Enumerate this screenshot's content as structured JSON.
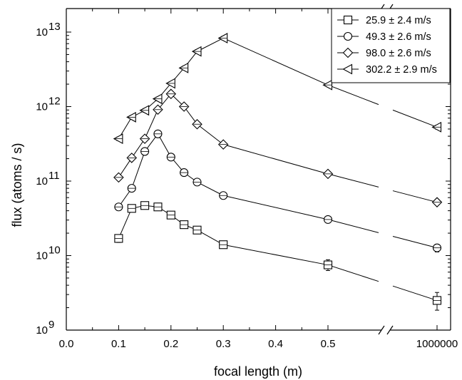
{
  "chart_data": {
    "type": "line",
    "title": "",
    "xlabel": "focal length (m)",
    "ylabel": "flux (atoms / s)",
    "y_scale": "log",
    "ylim": [
      1000000000.0,
      20000000000000.0
    ],
    "y_ticks": [
      {
        "value": 1000000000.0,
        "base": "10",
        "exp": "9"
      },
      {
        "value": 10000000000.0,
        "base": "10",
        "exp": "10"
      },
      {
        "value": 100000000000.0,
        "base": "10",
        "exp": "11"
      },
      {
        "value": 1000000000000.0,
        "base": "10",
        "exp": "12"
      },
      {
        "value": 10000000000000.0,
        "base": "10",
        "exp": "13"
      }
    ],
    "x_axis_break": "between 0.5 and 1000000",
    "xlim": [
      0.0,
      1000000
    ],
    "x_ticks": [
      "0.0",
      "0.1",
      "0.2",
      "0.3",
      "0.4",
      "0.5",
      "1000000"
    ],
    "legend_position": "top-right",
    "series": [
      {
        "name": "25.9 ± 2.4 m/s",
        "marker": "square",
        "x": [
          0.1,
          0.125,
          0.15,
          0.175,
          0.2,
          0.225,
          0.25,
          0.3,
          0.5,
          1000000
        ],
        "y": [
          17000000000.0,
          43000000000.0,
          47000000000.0,
          45000000000.0,
          35000000000.0,
          26000000000.0,
          22000000000.0,
          14000000000.0,
          7500000000.0,
          2500000000.0
        ],
        "err_lo": [
          15000000000.0,
          40000000000.0,
          44000000000.0,
          42000000000.0,
          33000000000.0,
          24500000000.0,
          20700000000.0,
          12500000000.0,
          6300000000.0,
          1850000000.0
        ],
        "err_hi": [
          19000000000.0,
          46000000000.0,
          50000000000.0,
          48000000000.0,
          37000000000.0,
          27500000000.0,
          23300000000.0,
          15500000000.0,
          8800000000.0,
          3200000000.0
        ]
      },
      {
        "name": "49.3 ± 2.6 m/s",
        "marker": "circle",
        "x": [
          0.1,
          0.125,
          0.15,
          0.175,
          0.2,
          0.225,
          0.25,
          0.3,
          0.5,
          1000000
        ],
        "y": [
          45000000000.0,
          80000000000.0,
          250000000000.0,
          430000000000.0,
          210000000000.0,
          130000000000.0,
          97000000000.0,
          64000000000.0,
          30500000000.0,
          12700000000.0
        ],
        "err_lo": [
          42000000000.0,
          75000000000.0,
          235000000000.0,
          405000000000.0,
          197000000000.0,
          122000000000.0,
          91000000000.0,
          60000000000.0,
          28000000000.0,
          11200000000.0
        ],
        "err_hi": [
          48000000000.0,
          85000000000.0,
          265000000000.0,
          455000000000.0,
          223000000000.0,
          138000000000.0,
          103000000000.0,
          68000000000.0,
          33000000000.0,
          14200000000.0
        ]
      },
      {
        "name": "98.0 ± 2.6 m/s",
        "marker": "diamond",
        "x": [
          0.1,
          0.125,
          0.15,
          0.175,
          0.2,
          0.225,
          0.25,
          0.3,
          0.5,
          1000000
        ],
        "y": [
          112000000000.0,
          205000000000.0,
          370000000000.0,
          910000000000.0,
          1480000000000.0,
          1000000000000.0,
          580000000000.0,
          310000000000.0,
          125000000000.0,
          52000000000.0
        ],
        "err_lo": [
          105000000000.0,
          193000000000.0,
          350000000000.0,
          860000000000.0,
          1400000000000.0,
          945000000000.0,
          550000000000.0,
          293000000000.0,
          118000000000.0,
          49000000000.0
        ],
        "err_hi": [
          119000000000.0,
          217000000000.0,
          390000000000.0,
          960000000000.0,
          1560000000000.0,
          1055000000000.0,
          610000000000.0,
          327000000000.0,
          132000000000.0,
          55000000000.0
        ]
      },
      {
        "name": "302.2 ± 2.9 m/s",
        "marker": "triangle-left",
        "x": [
          0.1,
          0.125,
          0.15,
          0.175,
          0.2,
          0.225,
          0.25,
          0.3,
          0.5,
          1000000
        ],
        "y": [
          370000000000.0,
          720000000000.0,
          890000000000.0,
          1270000000000.0,
          2050000000000.0,
          3300000000000.0,
          5500000000000.0,
          8300000000000.0,
          1950000000000.0,
          530000000000.0
        ],
        "err_lo": [
          350000000000.0,
          680000000000.0,
          840000000000.0,
          1200000000000.0,
          1940000000000.0,
          3120000000000.0,
          5200000000000.0,
          7850000000000.0,
          1850000000000.0,
          500000000000.0
        ],
        "err_hi": [
          390000000000.0,
          760000000000.0,
          940000000000.0,
          1340000000000.0,
          2160000000000.0,
          3480000000000.0,
          5800000000000.0,
          8750000000000.0,
          2050000000000.0,
          560000000000.0
        ]
      }
    ]
  }
}
